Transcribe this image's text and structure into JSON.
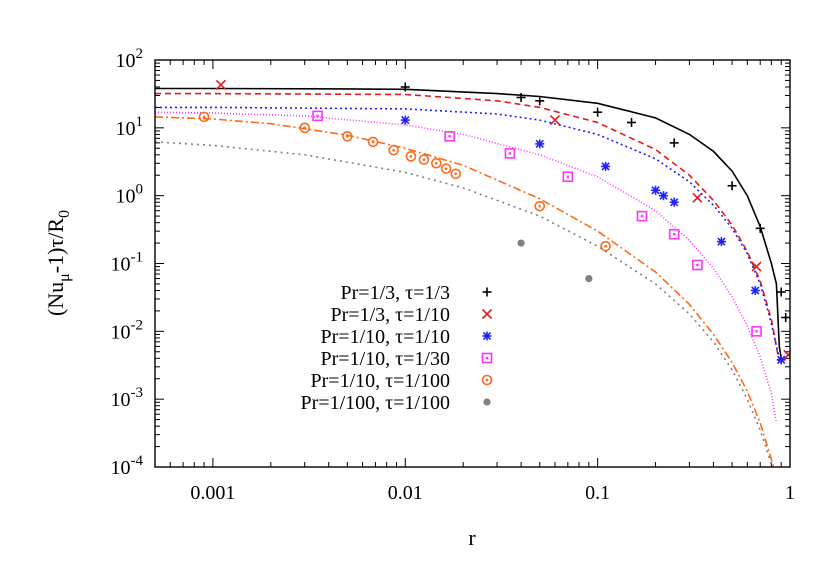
{
  "chart_data": {
    "type": "scatter",
    "xscale": "log",
    "yscale": "log",
    "xlim": [
      0.0005,
      1
    ],
    "ylim": [
      0.0001,
      100
    ],
    "xlabel": "r",
    "ylabel_parts": {
      "pre": "(Nu",
      "sub1": "μ",
      "mid": "-1)τ/R",
      "sub2": "0"
    },
    "xticks": [
      0.001,
      0.01,
      0.1,
      1
    ],
    "xtick_labels": [
      "0.001",
      "0.01",
      "0.1",
      "1"
    ],
    "yticks": [
      0.0001,
      0.001,
      0.01,
      0.1,
      1,
      10,
      100
    ],
    "ytick_labels": [
      {
        "base": "10",
        "exp": "-4"
      },
      {
        "base": "10",
        "exp": "-3"
      },
      {
        "base": "10",
        "exp": "-2"
      },
      {
        "base": "10",
        "exp": "-1"
      },
      {
        "base": "10",
        "exp": "0"
      },
      {
        "base": "10",
        "exp": "1"
      },
      {
        "base": "10",
        "exp": "2"
      }
    ],
    "legend_position": "bottom-center",
    "series": [
      {
        "name": "Pr=1/3, τ=1/3",
        "color": "#000000",
        "marker": "plus",
        "dash": "",
        "points": [
          [
            0.01,
            40
          ],
          [
            0.04,
            28
          ],
          [
            0.05,
            25
          ],
          [
            0.1,
            17
          ],
          [
            0.15,
            12
          ],
          [
            0.25,
            6
          ],
          [
            0.5,
            1.4
          ],
          [
            0.7,
            0.33
          ],
          [
            0.9,
            0.038
          ],
          [
            0.95,
            0.016
          ]
        ],
        "curve": [
          [
            0.0005,
            38
          ],
          [
            0.001,
            38
          ],
          [
            0.005,
            37.5
          ],
          [
            0.01,
            37
          ],
          [
            0.03,
            32
          ],
          [
            0.05,
            29
          ],
          [
            0.1,
            23
          ],
          [
            0.2,
            14
          ],
          [
            0.3,
            8
          ],
          [
            0.4,
            4.5
          ],
          [
            0.5,
            2.3
          ],
          [
            0.6,
            1
          ],
          [
            0.7,
            0.35
          ],
          [
            0.8,
            0.1
          ],
          [
            0.85,
            0.05
          ],
          [
            0.88,
            0.006
          ],
          [
            0.9,
            0.004
          ]
        ]
      },
      {
        "name": "Pr=1/3, τ=1/10",
        "color": "#e41a1c",
        "marker": "cross",
        "dash": "6,4",
        "points": [
          [
            0.0011,
            43
          ],
          [
            0.06,
            13
          ],
          [
            0.33,
            0.93
          ],
          [
            0.67,
            0.09
          ],
          [
            0.98,
            0.0045
          ]
        ],
        "curve": [
          [
            0.0005,
            32
          ],
          [
            0.001,
            32
          ],
          [
            0.01,
            31
          ],
          [
            0.03,
            25
          ],
          [
            0.05,
            20
          ],
          [
            0.1,
            12
          ],
          [
            0.2,
            4.8
          ],
          [
            0.3,
            2
          ],
          [
            0.4,
            0.85
          ],
          [
            0.5,
            0.37
          ],
          [
            0.6,
            0.15
          ],
          [
            0.7,
            0.055
          ],
          [
            0.8,
            0.015
          ],
          [
            0.85,
            0.006
          ],
          [
            0.88,
            0.0035
          ]
        ]
      },
      {
        "name": "Pr=1/10, τ=1/10",
        "color": "#1f1fff",
        "marker": "star",
        "dash": "2,3",
        "points": [
          [
            0.01,
            13
          ],
          [
            0.05,
            5.8
          ],
          [
            0.11,
            2.7
          ],
          [
            0.2,
            1.2
          ],
          [
            0.22,
            1.0
          ],
          [
            0.25,
            0.8
          ],
          [
            0.44,
            0.21
          ],
          [
            0.66,
            0.04
          ],
          [
            0.9,
            0.0038
          ]
        ],
        "curve": [
          [
            0.0005,
            20
          ],
          [
            0.001,
            20
          ],
          [
            0.01,
            19
          ],
          [
            0.03,
            16
          ],
          [
            0.05,
            13
          ],
          [
            0.1,
            8
          ],
          [
            0.2,
            3.5
          ],
          [
            0.3,
            1.6
          ],
          [
            0.4,
            0.72
          ],
          [
            0.5,
            0.33
          ],
          [
            0.6,
            0.14
          ],
          [
            0.7,
            0.05
          ],
          [
            0.8,
            0.013
          ],
          [
            0.85,
            0.006
          ],
          [
            0.88,
            0.004
          ]
        ]
      },
      {
        "name": "Pr=1/10, τ=1/30",
        "color": "#ff33ff",
        "marker": "square",
        "dash": "1,2",
        "points": [
          [
            0.0035,
            15
          ],
          [
            0.017,
            7.5
          ],
          [
            0.035,
            4.2
          ],
          [
            0.07,
            1.9
          ],
          [
            0.17,
            0.5
          ],
          [
            0.25,
            0.27
          ],
          [
            0.33,
            0.095
          ],
          [
            0.67,
            0.01
          ]
        ],
        "curve": [
          [
            0.0005,
            17
          ],
          [
            0.001,
            16.5
          ],
          [
            0.003,
            15
          ],
          [
            0.01,
            11
          ],
          [
            0.02,
            8
          ],
          [
            0.05,
            4
          ],
          [
            0.1,
            1.9
          ],
          [
            0.2,
            0.6
          ],
          [
            0.3,
            0.22
          ],
          [
            0.4,
            0.085
          ],
          [
            0.5,
            0.032
          ],
          [
            0.6,
            0.012
          ],
          [
            0.7,
            0.0042
          ],
          [
            0.8,
            0.0012
          ],
          [
            0.85,
            0.00045
          ]
        ]
      },
      {
        "name": "Pr=1/10, τ=1/100",
        "color": "#ff6a1a",
        "marker": "circle",
        "dash": "8,3,2,3",
        "points": [
          [
            0.0009,
            14.5
          ],
          [
            0.003,
            10
          ],
          [
            0.005,
            7.5
          ],
          [
            0.0068,
            6.2
          ],
          [
            0.0087,
            4.7
          ],
          [
            0.0107,
            3.8
          ],
          [
            0.0125,
            3.4
          ],
          [
            0.0145,
            3.0
          ],
          [
            0.0163,
            2.5
          ],
          [
            0.0183,
            2.1
          ],
          [
            0.05,
            0.7
          ],
          [
            0.11,
            0.18
          ]
        ],
        "curve": [
          [
            0.0005,
            14.5
          ],
          [
            0.001,
            13.5
          ],
          [
            0.002,
            11.5
          ],
          [
            0.005,
            7.8
          ],
          [
            0.01,
            5
          ],
          [
            0.02,
            2.8
          ],
          [
            0.05,
            0.9
          ],
          [
            0.1,
            0.3
          ],
          [
            0.2,
            0.075
          ],
          [
            0.3,
            0.025
          ],
          [
            0.4,
            0.009
          ],
          [
            0.5,
            0.0035
          ],
          [
            0.6,
            0.0013
          ],
          [
            0.7,
            0.00045
          ],
          [
            0.8,
            0.00013
          ],
          [
            0.82,
            0.0001
          ]
        ]
      },
      {
        "name": "Pr=1/100, τ=1/100",
        "color": "#808080",
        "marker": "dot",
        "dash": "2,4",
        "points": [
          [
            0.04,
            0.2
          ],
          [
            0.09,
            0.06
          ]
        ],
        "curve": [
          [
            0.0005,
            6.2
          ],
          [
            0.001,
            5.5
          ],
          [
            0.003,
            4
          ],
          [
            0.01,
            2.2
          ],
          [
            0.02,
            1.3
          ],
          [
            0.05,
            0.5
          ],
          [
            0.1,
            0.18
          ],
          [
            0.2,
            0.05
          ],
          [
            0.3,
            0.018
          ],
          [
            0.4,
            0.007
          ],
          [
            0.5,
            0.0027
          ],
          [
            0.6,
            0.001
          ],
          [
            0.7,
            0.00035
          ],
          [
            0.8,
            0.00011
          ],
          [
            0.81,
            0.0001
          ]
        ]
      }
    ]
  }
}
